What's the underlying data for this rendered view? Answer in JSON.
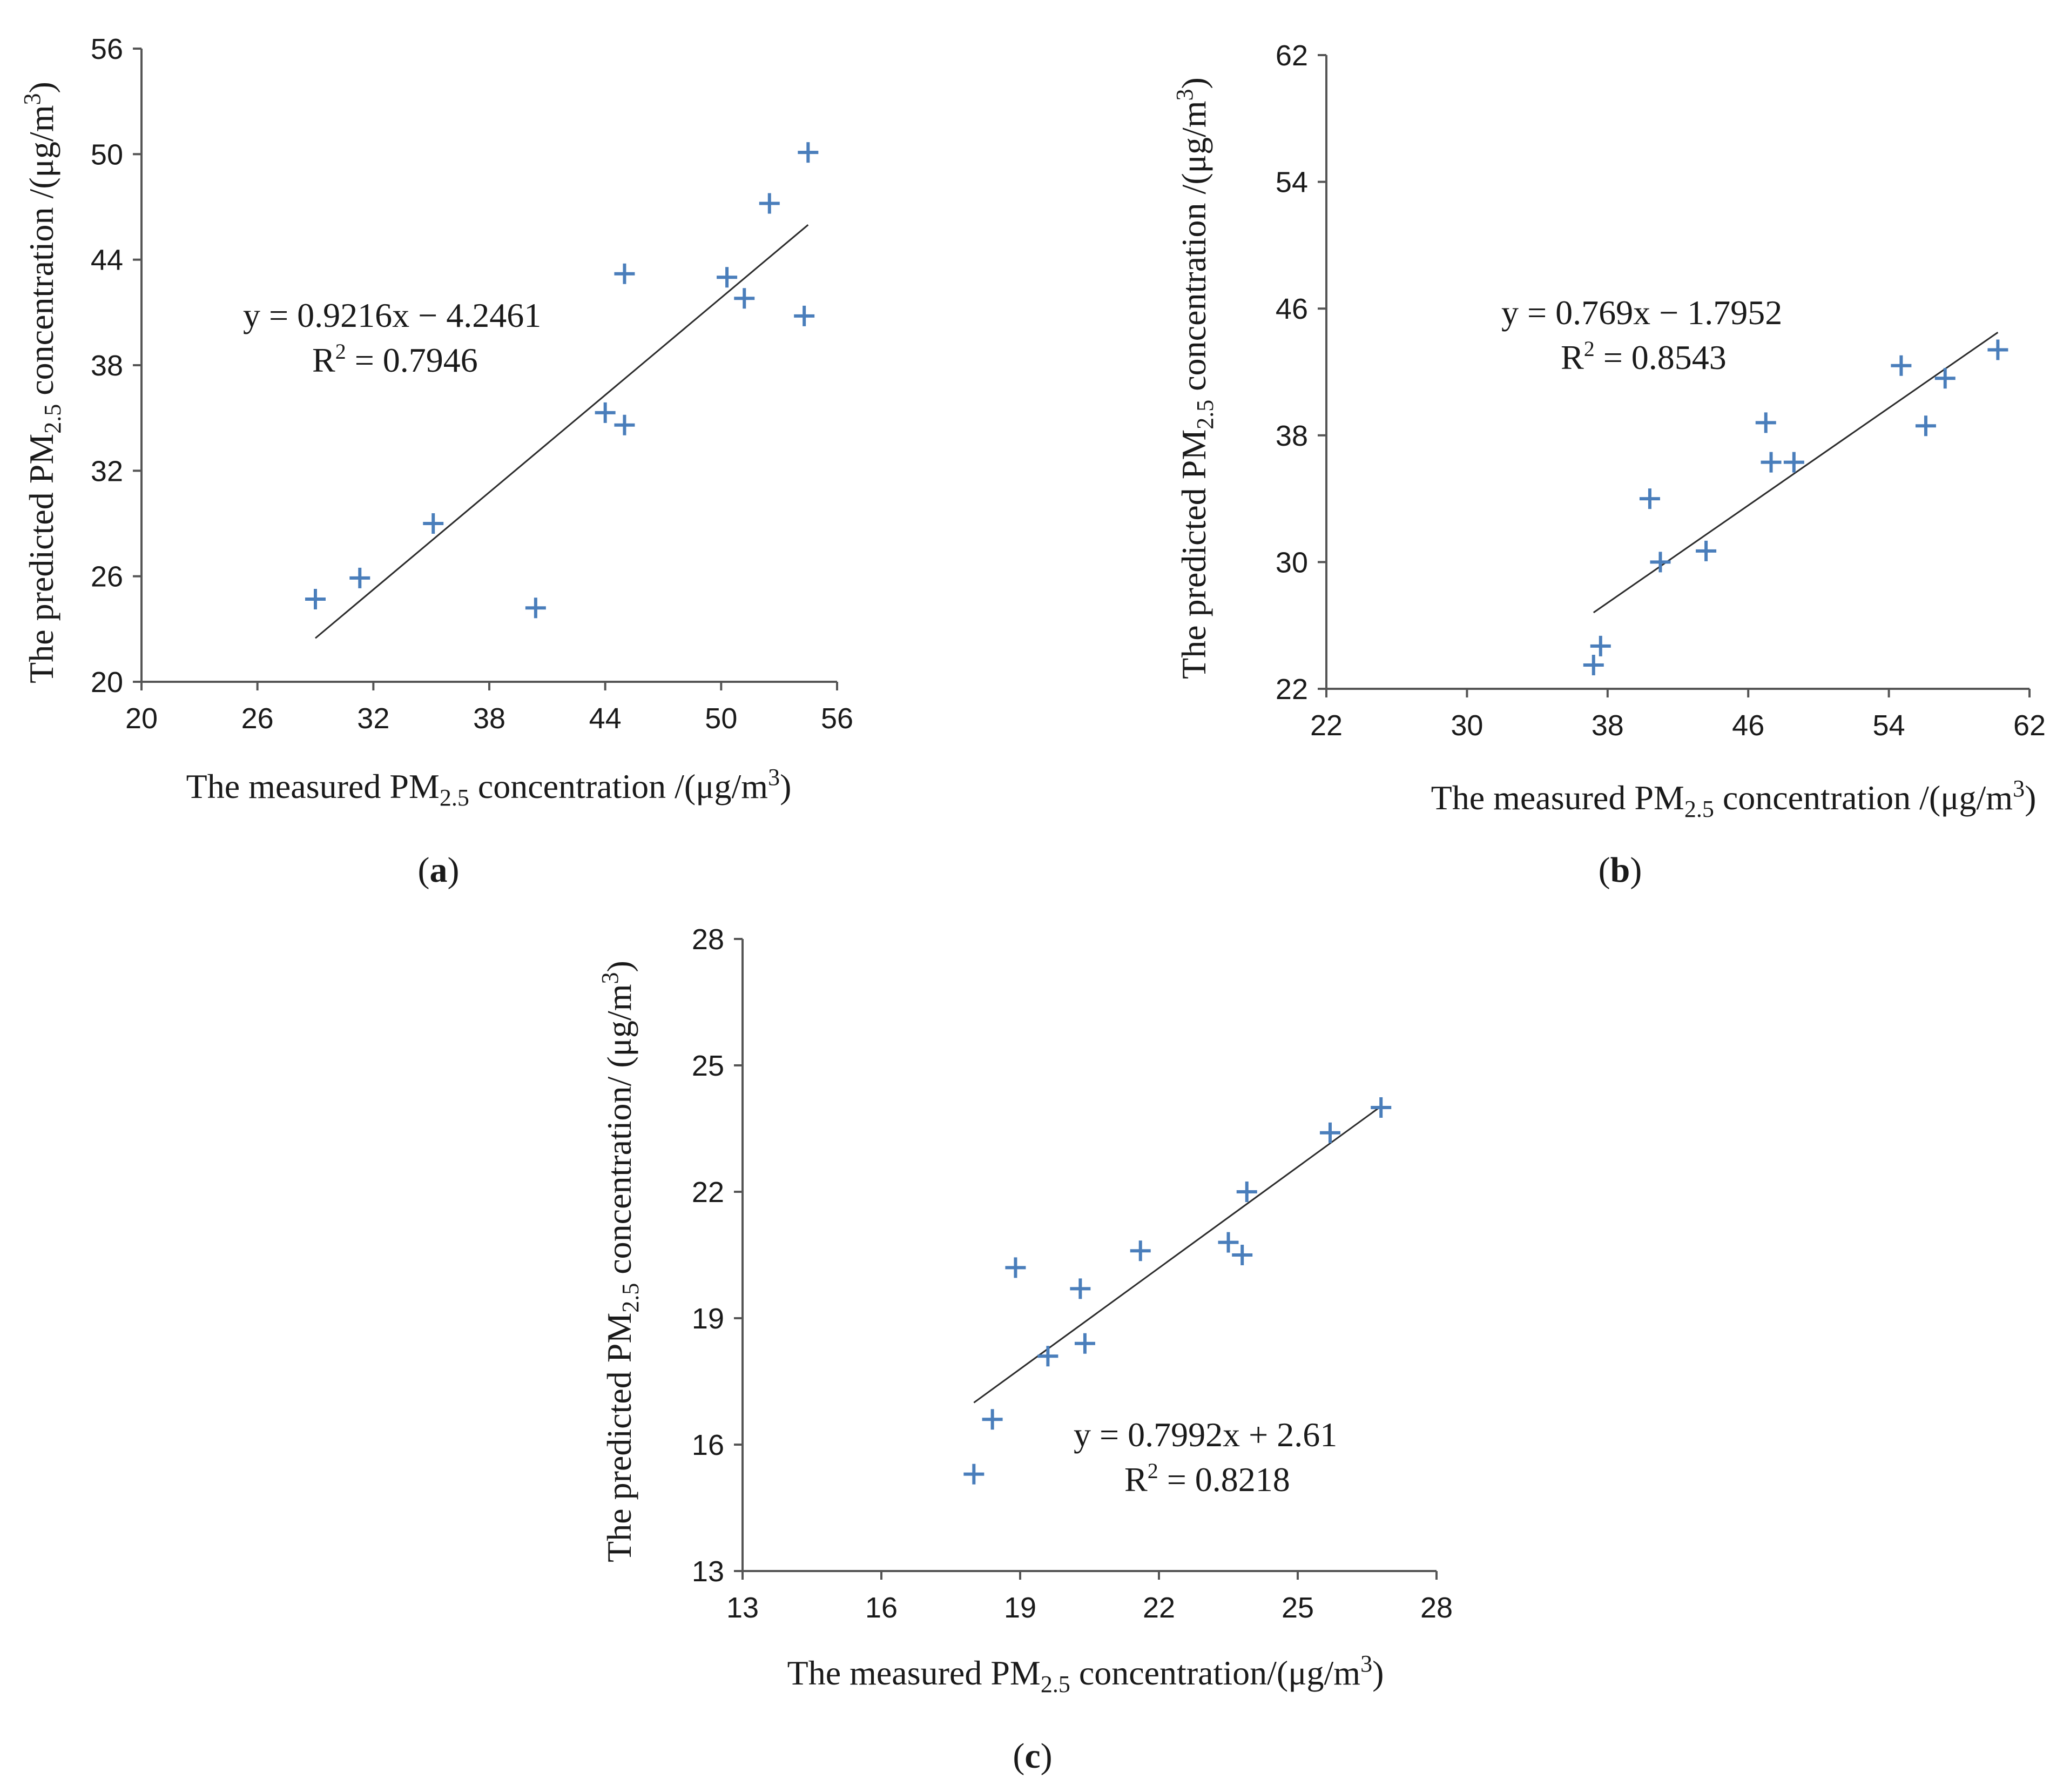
{
  "colors": {
    "marker": "#4a7ebb",
    "axis": "#555555",
    "trend": "#2b2b2b"
  },
  "chart_data": [
    {
      "id": "a",
      "type": "scatter",
      "caption": "a",
      "xlabel": {
        "main": "The measured PM",
        "sub": "2.5",
        "rest": "  concentration  /(μg/m",
        "sup": "3",
        "end": ")"
      },
      "ylabel": {
        "main": "The predicted  PM",
        "sub": "2.5",
        "rest": " concentration /(μg/m",
        "sup": "3",
        "end": ")"
      },
      "xlim": [
        20,
        56
      ],
      "ylim": [
        20,
        56
      ],
      "xticks": [
        20,
        26,
        32,
        38,
        44,
        50,
        56
      ],
      "yticks": [
        20,
        26,
        32,
        38,
        44,
        50,
        56
      ],
      "x": [
        29.0,
        31.3,
        35.1,
        40.4,
        44.0,
        45.0,
        45.0,
        50.3,
        51.2,
        52.5,
        54.3,
        54.5
      ],
      "y": [
        24.7,
        25.9,
        29.0,
        24.2,
        35.3,
        34.6,
        43.2,
        43.0,
        41.8,
        47.2,
        40.8,
        50.1
      ],
      "trendline": {
        "slope": 0.9216,
        "intercept": -4.2461,
        "x_range": [
          29.0,
          54.5
        ]
      },
      "equation": "y = 0.9216x − 4.2461",
      "r2_prefix": "R",
      "r2_sup": "2",
      "r2_value": " = 0.7946"
    },
    {
      "id": "b",
      "type": "scatter",
      "caption": "b",
      "xlabel": {
        "main": "The measured PM",
        "sub": "2.5",
        "rest": " concentration /(μg/m",
        "sup": "3",
        "end": ")"
      },
      "ylabel": {
        "main": "The  predicted PM",
        "sub": "2.5",
        "rest": " concentration /(μg/m",
        "sup": "3",
        "end": ")"
      },
      "xlim": [
        22,
        62
      ],
      "ylim": [
        22,
        62
      ],
      "xticks": [
        22,
        30,
        38,
        46,
        54,
        62
      ],
      "yticks": [
        22,
        30,
        38,
        46,
        54,
        62
      ],
      "x": [
        37.2,
        37.6,
        40.4,
        41.0,
        43.6,
        47.0,
        47.3,
        48.6,
        54.7,
        56.1,
        57.2,
        60.2
      ],
      "y": [
        23.5,
        24.7,
        34.0,
        30.0,
        30.7,
        38.8,
        36.3,
        36.3,
        42.4,
        38.6,
        41.6,
        43.4
      ],
      "trendline": {
        "slope": 0.769,
        "intercept": -1.7952,
        "x_range": [
          37.2,
          60.2
        ]
      },
      "equation": "y = 0.769x − 1.7952",
      "r2_prefix": "R",
      "r2_sup": "2",
      "r2_value": " = 0.8543"
    },
    {
      "id": "c",
      "type": "scatter",
      "caption": "c",
      "xlabel": {
        "main": "The measured PM",
        "sub": "2.5",
        "rest": " concentration/(μg/m",
        "sup": "3",
        "end": ")"
      },
      "ylabel": {
        "main": "The predicted PM",
        "sub": "2.5",
        "rest": " concentration/ (μg/m",
        "sup": "3",
        "end": ")"
      },
      "xlim": [
        13,
        28
      ],
      "ylim": [
        13,
        28
      ],
      "xticks": [
        13,
        16,
        19,
        22,
        25,
        28
      ],
      "yticks": [
        13,
        16,
        19,
        22,
        25,
        28
      ],
      "x": [
        18.0,
        18.4,
        18.9,
        19.6,
        20.3,
        20.4,
        21.6,
        23.5,
        23.8,
        23.9,
        25.7,
        26.8
      ],
      "y": [
        15.3,
        16.6,
        20.2,
        18.1,
        19.7,
        18.4,
        20.6,
        20.8,
        20.5,
        22.0,
        23.4,
        24.0
      ],
      "trendline": {
        "slope": 0.7992,
        "intercept": 2.61,
        "x_range": [
          18.0,
          26.8
        ]
      },
      "equation": "y = 0.7992x + 2.61",
      "r2_prefix": "R",
      "r2_sup": "2",
      "r2_value": " = 0.8218"
    }
  ]
}
